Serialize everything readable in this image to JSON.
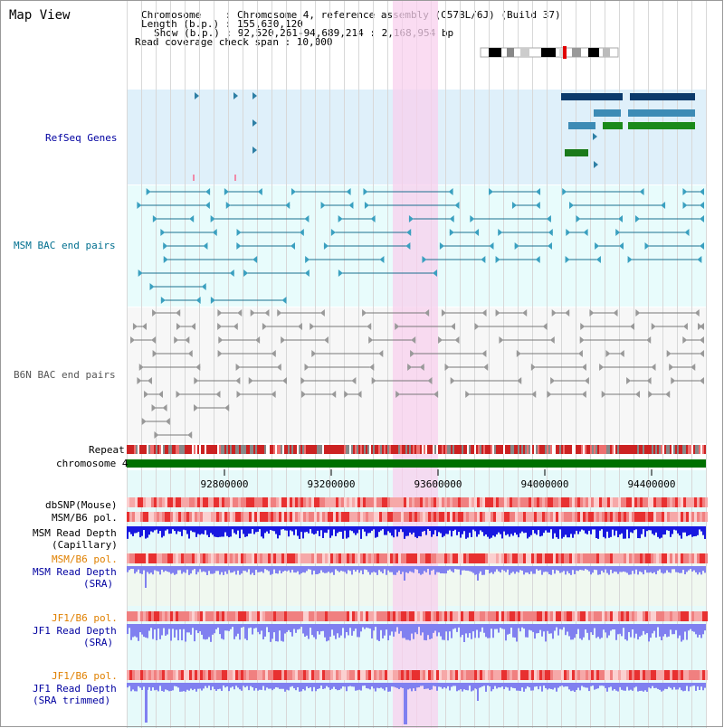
{
  "title": "Map View",
  "info": {
    "chromosome": "Chromosome    : Chromosome 4, reference assembly (C57BL/6J) (Build 37)",
    "length": "Length (b.p.) : 155,630,120",
    "show": "Show (b.p.) : 92,520,261-94,689,214 : 2,168,954 bp",
    "coverage": "Read coverage check span : 10,000"
  },
  "tracks": {
    "refseq": "RefSeq Genes",
    "msm_bac": "MSM BAC end pairs",
    "b6n_bac": "B6N BAC end pairs",
    "repeat": "Repeat",
    "chromosome": "chromosome 4",
    "dbsnp": "dbSNP(Mouse)",
    "msm_b6_pol_1": "MSM/B6 pol.",
    "msm_depth_cap_1": "MSM Read Depth",
    "msm_depth_cap_2": "(Capillary)",
    "msm_b6_pol_2": "MSM/B6 pol.",
    "msm_depth_sra_1": "MSM Read Depth",
    "msm_depth_sra_2": "(SRA)",
    "jf1_b6_pol_1": "JF1/B6 pol.",
    "jf1_depth_sra_1": "JF1 Read Depth",
    "jf1_depth_sra_2": "(SRA)",
    "jf1_b6_pol_2": "JF1/B6 pol.",
    "jf1_depth_trim_1": "JF1 Read Depth",
    "jf1_depth_trim_2": "(SRA trimmed)"
  },
  "ruler": {
    "ticks": [
      "92800000",
      "93200000",
      "93600000",
      "94000000",
      "94400000"
    ]
  },
  "colors": {
    "refseq_bg": "#dff0fa",
    "msm_bg": "#e8fcfc",
    "b6n_bg": "#f5f5f5",
    "highlight": "#fadcf0",
    "chromosome_bar": "#007000",
    "msm_label": "#006f8f",
    "b6n_label": "#555555",
    "refseq_label": "#0000a0",
    "pol_label": "#e08000",
    "depth_label": "#0000a0"
  }
}
